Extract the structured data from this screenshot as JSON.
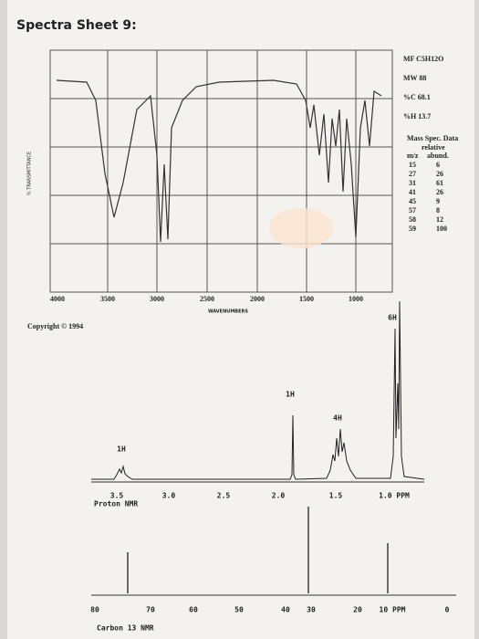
{
  "title": "Spectra Sheet 9:",
  "info": {
    "formula": "MF C5H12O",
    "weight": "MW 88",
    "carbon": "%C 68.1",
    "hydrogen": "%H 13.7"
  },
  "mass_spec": {
    "title": "Mass Spec. Data",
    "subtitle": "relative",
    "col_mz": "m/z",
    "col_abund": "abund.",
    "rows": [
      [
        "15",
        "6"
      ],
      [
        "27",
        "26"
      ],
      [
        "31",
        "61"
      ],
      [
        "41",
        "26"
      ],
      [
        "45",
        "9"
      ],
      [
        "57",
        "8"
      ],
      [
        "58",
        "12"
      ],
      [
        "59",
        "100"
      ]
    ]
  },
  "ir": {
    "y_label": "% TRANSMITTANCE",
    "x_label": "WAVENUMBERS",
    "x_ticks": [
      "4000",
      "3500",
      "3000",
      "2500",
      "2000",
      "1500",
      "1000"
    ]
  },
  "copyright": "Copyright © 1994",
  "proton_nmr": {
    "label": "Proton NMR",
    "ticks": [
      "3.5",
      "3.0",
      "2.5",
      "2.0",
      "1.5",
      "1.0 PPM"
    ],
    "integrals": [
      "1H",
      "1H",
      "4H",
      "6H"
    ]
  },
  "carbon_nmr": {
    "label": "Carbon 13 NMR",
    "ticks": [
      "80",
      "70",
      "60",
      "50",
      "40",
      "30",
      "20",
      "10 PPM",
      "0"
    ]
  }
}
